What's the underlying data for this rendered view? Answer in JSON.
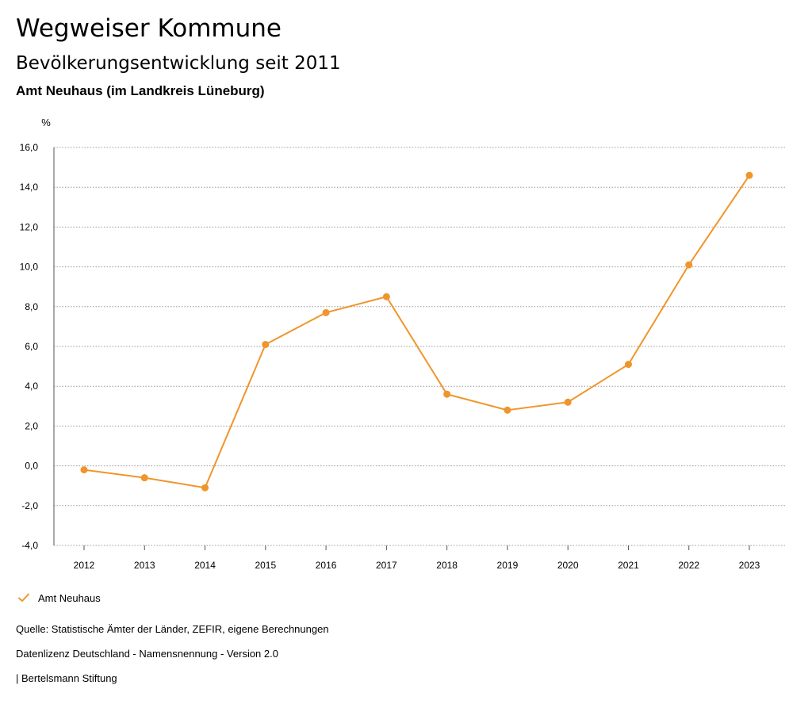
{
  "header": {
    "title": "Wegweiser Kommune",
    "subtitle": "Bevölkerungsentwicklung seit 2011",
    "region": "Amt Neuhaus (im Landkreis Lüneburg)"
  },
  "chart_data": {
    "type": "line",
    "ylabel": "%",
    "ylim": [
      -4,
      16
    ],
    "yticks": [
      "-4,0",
      "-2,0",
      "0,0",
      "2,0",
      "4,0",
      "6,0",
      "8,0",
      "10,0",
      "12,0",
      "14,0",
      "16,0"
    ],
    "ytick_values": [
      -4,
      -2,
      0,
      2,
      4,
      6,
      8,
      10,
      12,
      14,
      16
    ],
    "categories": [
      "2012",
      "2013",
      "2014",
      "2015",
      "2016",
      "2017",
      "2018",
      "2019",
      "2020",
      "2021",
      "2022",
      "2023"
    ],
    "series": [
      {
        "name": "Amt Neuhaus",
        "color": "#f0952b",
        "values": [
          -0.2,
          -0.6,
          -1.1,
          6.1,
          7.7,
          8.5,
          3.6,
          2.8,
          3.2,
          5.1,
          10.1,
          14.6
        ]
      }
    ],
    "grid": "horizontal dotted",
    "legend_position": "bottom-left"
  },
  "legend": {
    "label": "Amt Neuhaus",
    "icon": "checkmark-icon",
    "color": "#f0952b"
  },
  "footer": {
    "source": "Quelle: Statistische Ämter der Länder, ZEFIR, eigene Berechnungen",
    "license": "Datenlizenz Deutschland - Namensnennung - Version 2.0",
    "publisher": "| Bertelsmann Stiftung"
  }
}
